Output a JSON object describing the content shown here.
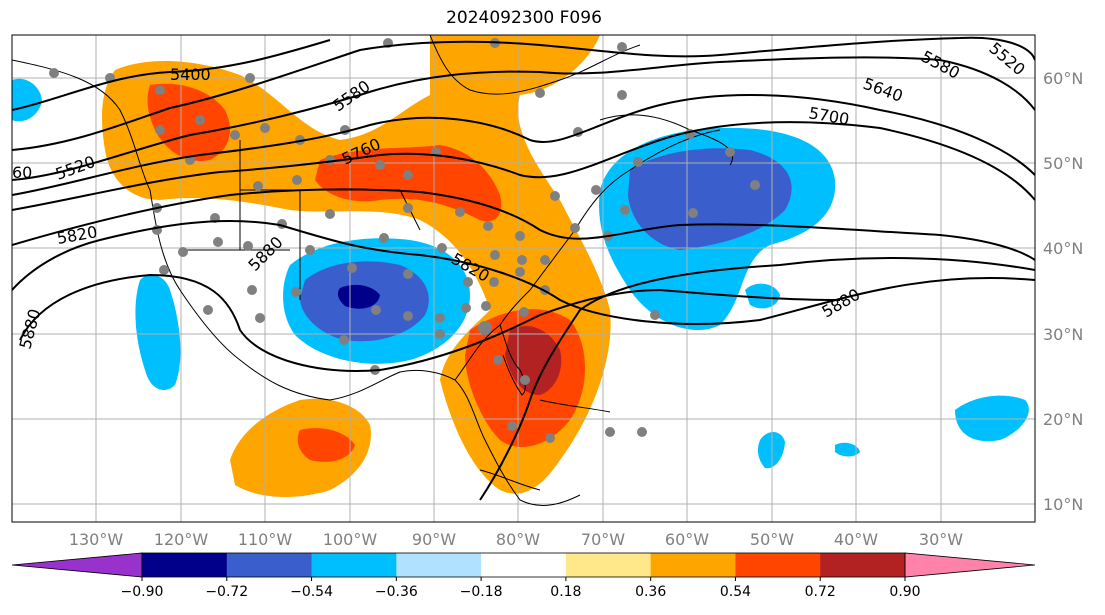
{
  "title": "2024092300 F096",
  "map": {
    "projection": "plate-carree",
    "longitude_range": [
      -140,
      15
    ],
    "latitude_range": [
      8,
      64
    ],
    "grid": true,
    "lon_ticks": [
      "130°W",
      "120°W",
      "110°W",
      "100°W",
      "90°W",
      "80°W",
      "70°W",
      "60°W",
      "50°W",
      "40°W",
      "30°W"
    ],
    "lat_ticks": [
      "10°N",
      "20°N",
      "30°N",
      "40°N",
      "50°N",
      "60°N"
    ],
    "contour_labels": [
      "5400",
      "5520",
      "5580",
      "5640",
      "5700",
      "5760",
      "5820",
      "5880",
      "60",
      "5580",
      "5520",
      "5880",
      "5820",
      "5880"
    ]
  },
  "colorbar": {
    "ticks": [
      "−0.90",
      "−0.72",
      "−0.54",
      "−0.36",
      "−0.18",
      "0.18",
      "0.36",
      "0.54",
      "0.72",
      "0.90"
    ],
    "colors": [
      "#9932cc",
      "#00008b",
      "#3a5fcd",
      "#00bfff",
      "#b0e2ff",
      "#ffffff",
      "#fee88a",
      "#ffa500",
      "#ff4500",
      "#b22222",
      "#ff82ab"
    ]
  }
}
